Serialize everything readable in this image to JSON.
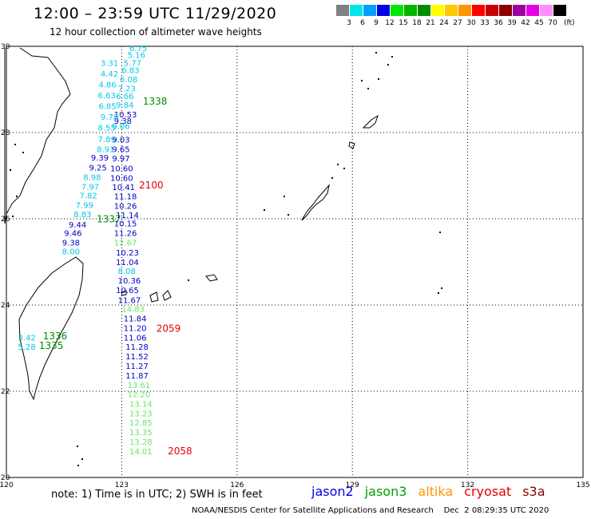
{
  "header": {
    "title": "12:00 – 23:59 UTC 11/29/2020",
    "subtitle": "12 hour collection of altimeter wave heights"
  },
  "legend": {
    "unit": "(ft)",
    "bins": [
      {
        "label": "3",
        "color": "#808080"
      },
      {
        "label": "6",
        "color": "#00e6e6"
      },
      {
        "label": "9",
        "color": "#00a0ff"
      },
      {
        "label": "12",
        "color": "#0000e6"
      },
      {
        "label": "15",
        "color": "#00e600"
      },
      {
        "label": "18",
        "color": "#00b400"
      },
      {
        "label": "21",
        "color": "#008c00"
      },
      {
        "label": "24",
        "color": "#ffff00"
      },
      {
        "label": "27",
        "color": "#ffc800"
      },
      {
        "label": "30",
        "color": "#ff9600"
      },
      {
        "label": "33",
        "color": "#ff0000"
      },
      {
        "label": "36",
        "color": "#c80000"
      },
      {
        "label": "39",
        "color": "#8c0000"
      },
      {
        "label": "42",
        "color": "#a000a0"
      },
      {
        "label": "45",
        "color": "#e600e6"
      },
      {
        "label": "70",
        "color": "#ff8cff"
      },
      {
        "label": "",
        "color": "#000000"
      }
    ]
  },
  "map": {
    "lat_range": [
      20,
      30
    ],
    "lon_range": [
      120,
      135
    ],
    "lat_ticks": [
      "20",
      "22",
      "24",
      "26",
      "28",
      "30"
    ],
    "lon_ticks": [
      "120",
      "123",
      "126",
      "129",
      "132",
      "135"
    ]
  },
  "colors": {
    "cyan": "#00c8e6",
    "blue": "#0000c8",
    "green": "#64e664",
    "darkgreen": "#008c00",
    "red": "#e60000"
  },
  "tracks": [
    {
      "name": "track-a",
      "points": [
        {
          "lat": 29.89,
          "lon": 123.2,
          "v": "6.75",
          "c": "cyan"
        },
        {
          "lat": 29.73,
          "lon": 123.15,
          "v": "5.16",
          "c": "cyan"
        },
        {
          "lat": 29.55,
          "lon": 123.05,
          "v": "5.77",
          "c": "cyan"
        },
        {
          "lat": 29.38,
          "lon": 123.0,
          "v": "6.83",
          "c": "cyan"
        },
        {
          "lat": 29.17,
          "lon": 122.95,
          "v": "6.08",
          "c": "cyan"
        },
        {
          "lat": 28.95,
          "lon": 122.9,
          "v": "7.23",
          "c": "cyan"
        },
        {
          "lat": 28.78,
          "lon": 122.85,
          "v": "6.66",
          "c": "cyan"
        },
        {
          "lat": 28.57,
          "lon": 122.85,
          "v": "9.84",
          "c": "cyan"
        },
        {
          "lat": 28.35,
          "lon": 122.8,
          "v": "10.53",
          "c": "blue"
        },
        {
          "lat": 28.2,
          "lon": 122.8,
          "v": "9.38",
          "c": "blue"
        },
        {
          "lat": 28.08,
          "lon": 122.75,
          "v": "9.06",
          "c": "cyan"
        },
        {
          "lat": 27.77,
          "lon": 122.75,
          "v": "9.03",
          "c": "blue"
        },
        {
          "lat": 27.55,
          "lon": 122.75,
          "v": "9.65",
          "c": "blue"
        },
        {
          "lat": 27.33,
          "lon": 122.75,
          "v": "9.97",
          "c": "blue"
        },
        {
          "lat": 27.1,
          "lon": 122.7,
          "v": "10.60",
          "c": "blue"
        },
        {
          "lat": 26.88,
          "lon": 122.7,
          "v": "10.60",
          "c": "blue"
        },
        {
          "lat": 26.67,
          "lon": 122.75,
          "v": "10.41",
          "c": "blue"
        },
        {
          "lat": 26.45,
          "lon": 122.8,
          "v": "11.18",
          "c": "blue"
        },
        {
          "lat": 26.23,
          "lon": 122.8,
          "v": "10.26",
          "c": "blue"
        },
        {
          "lat": 26.02,
          "lon": 122.85,
          "v": "11.14",
          "c": "blue"
        },
        {
          "lat": 25.82,
          "lon": 122.8,
          "v": "10.15",
          "c": "blue"
        },
        {
          "lat": 25.6,
          "lon": 122.8,
          "v": "11.26",
          "c": "blue"
        },
        {
          "lat": 25.38,
          "lon": 122.8,
          "v": "12.67",
          "c": "green"
        },
        {
          "lat": 25.15,
          "lon": 122.85,
          "v": "10.23",
          "c": "blue"
        },
        {
          "lat": 24.93,
          "lon": 122.85,
          "v": "11.04",
          "c": "blue"
        },
        {
          "lat": 24.72,
          "lon": 122.9,
          "v": "8.08",
          "c": "cyan"
        },
        {
          "lat": 24.5,
          "lon": 122.9,
          "v": "10.36",
          "c": "blue"
        },
        {
          "lat": 24.28,
          "lon": 122.85,
          "v": "10.65",
          "c": "blue"
        },
        {
          "lat": 24.05,
          "lon": 122.9,
          "v": "11.67",
          "c": "blue"
        },
        {
          "lat": 23.84,
          "lon": 123.0,
          "v": "14.83",
          "c": "green"
        },
        {
          "lat": 23.62,
          "lon": 123.05,
          "v": "11.84",
          "c": "blue"
        },
        {
          "lat": 23.4,
          "lon": 123.05,
          "v": "11.20",
          "c": "blue"
        },
        {
          "lat": 23.18,
          "lon": 123.05,
          "v": "11.06",
          "c": "blue"
        },
        {
          "lat": 22.96,
          "lon": 123.1,
          "v": "11.28",
          "c": "blue"
        },
        {
          "lat": 22.74,
          "lon": 123.1,
          "v": "11.52",
          "c": "blue"
        },
        {
          "lat": 22.52,
          "lon": 123.1,
          "v": "11.27",
          "c": "blue"
        },
        {
          "lat": 22.3,
          "lon": 123.1,
          "v": "11.87",
          "c": "blue"
        },
        {
          "lat": 22.07,
          "lon": 123.15,
          "v": "13.61",
          "c": "green"
        },
        {
          "lat": 21.86,
          "lon": 123.15,
          "v": "12.20",
          "c": "green"
        },
        {
          "lat": 21.64,
          "lon": 123.2,
          "v": "13.14",
          "c": "green"
        },
        {
          "lat": 21.42,
          "lon": 123.2,
          "v": "13.23",
          "c": "green"
        },
        {
          "lat": 21.2,
          "lon": 123.2,
          "v": "12.85",
          "c": "green"
        },
        {
          "lat": 20.98,
          "lon": 123.2,
          "v": "13.35",
          "c": "green"
        },
        {
          "lat": 20.76,
          "lon": 123.2,
          "v": "13.28",
          "c": "green"
        },
        {
          "lat": 20.54,
          "lon": 123.2,
          "v": "14.01",
          "c": "green"
        }
      ]
    },
    {
      "name": "track-b",
      "points": [
        {
          "lat": 29.55,
          "lon": 122.45,
          "v": "3.31",
          "c": "cyan"
        },
        {
          "lat": 29.3,
          "lon": 122.45,
          "v": "4.42",
          "c": "cyan"
        },
        {
          "lat": 29.05,
          "lon": 122.4,
          "v": "4.86",
          "c": "cyan"
        },
        {
          "lat": 28.8,
          "lon": 122.38,
          "v": "6.63",
          "c": "cyan"
        },
        {
          "lat": 28.55,
          "lon": 122.4,
          "v": "6.85",
          "c": "cyan"
        },
        {
          "lat": 28.3,
          "lon": 122.45,
          "v": "9.78",
          "c": "cyan"
        },
        {
          "lat": 28.05,
          "lon": 122.38,
          "v": "8.55",
          "c": "cyan"
        },
        {
          "lat": 27.78,
          "lon": 122.38,
          "v": "7.89",
          "c": "cyan"
        },
        {
          "lat": 27.55,
          "lon": 122.35,
          "v": "8.91",
          "c": "cyan"
        },
        {
          "lat": 27.35,
          "lon": 122.2,
          "v": "9.39",
          "c": "blue"
        },
        {
          "lat": 27.12,
          "lon": 122.15,
          "v": "9.25",
          "c": "blue"
        },
        {
          "lat": 26.9,
          "lon": 122.0,
          "v": "8.98",
          "c": "cyan"
        },
        {
          "lat": 26.68,
          "lon": 121.95,
          "v": "7.97",
          "c": "cyan"
        },
        {
          "lat": 26.47,
          "lon": 121.9,
          "v": "7.82",
          "c": "cyan"
        },
        {
          "lat": 26.25,
          "lon": 121.8,
          "v": "7.99",
          "c": "cyan"
        },
        {
          "lat": 26.04,
          "lon": 121.75,
          "v": "8.83",
          "c": "cyan"
        },
        {
          "lat": 25.8,
          "lon": 121.62,
          "v": "9.44",
          "c": "blue"
        },
        {
          "lat": 25.6,
          "lon": 121.5,
          "v": "9.46",
          "c": "blue"
        },
        {
          "lat": 25.38,
          "lon": 121.45,
          "v": "9.38",
          "c": "blue"
        },
        {
          "lat": 25.18,
          "lon": 121.45,
          "v": "8.00",
          "c": "cyan"
        }
      ]
    },
    {
      "name": "track-c",
      "points": [
        {
          "lat": 23.18,
          "lon": 120.3,
          "v": "3.42",
          "c": "cyan"
        },
        {
          "lat": 22.96,
          "lon": 120.3,
          "v": "5.28",
          "c": "cyan"
        }
      ]
    }
  ],
  "pass_labels": [
    {
      "lat": 28.65,
      "lon": 123.55,
      "text": "1338",
      "c": "darkgreen"
    },
    {
      "lat": 26.7,
      "lon": 123.45,
      "text": "2100",
      "c": "red"
    },
    {
      "lat": 25.92,
      "lon": 122.35,
      "text": "1337",
      "c": "darkgreen"
    },
    {
      "lat": 23.38,
      "lon": 123.9,
      "text": "2059",
      "c": "red"
    },
    {
      "lat": 23.2,
      "lon": 120.95,
      "text": "1336",
      "c": "darkgreen"
    },
    {
      "lat": 22.98,
      "lon": 120.85,
      "text": "1335",
      "c": "darkgreen"
    },
    {
      "lat": 20.54,
      "lon": 124.2,
      "text": "2058",
      "c": "red"
    }
  ],
  "footer": {
    "note": "note: 1) Time is in UTC; 2) SWH is in feet",
    "satellites": [
      {
        "name": "jason2",
        "color": "#0000e6"
      },
      {
        "name": "jason3",
        "color": "#00a000"
      },
      {
        "name": "altika",
        "color": "#ff9600"
      },
      {
        "name": "cryosat",
        "color": "#e60000"
      },
      {
        "name": "s3a",
        "color": "#8c0000"
      }
    ],
    "credit": "NOAA/NESDIS Center for Satellite Applications and Research    Dec  2 08:29:35 UTC 2020"
  }
}
